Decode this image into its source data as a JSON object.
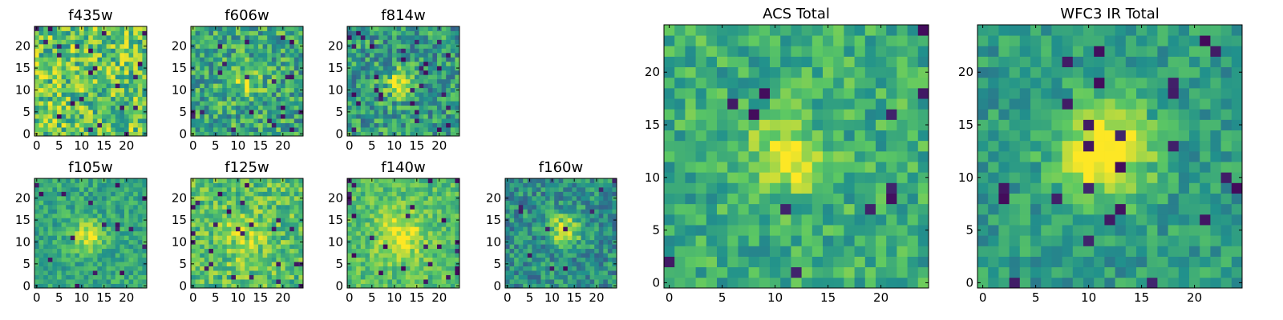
{
  "colormap": "viridis",
  "colors": {
    "viridis_stops": [
      "#440154",
      "#3b528b",
      "#21918c",
      "#5ec962",
      "#fde725"
    ],
    "frame": "#000000",
    "background": "#ffffff"
  },
  "chart_data": [
    {
      "type": "heatmap",
      "title": "f435w",
      "grid_size": 25,
      "xlim": [
        0,
        25
      ],
      "ylim": [
        0,
        25
      ],
      "xticks": [
        0,
        5,
        10,
        15,
        20
      ],
      "yticks": [
        0,
        5,
        10,
        15,
        20
      ],
      "grid": false,
      "colormap": "viridis",
      "pattern": "noise_uniform"
    },
    {
      "type": "heatmap",
      "title": "f606w",
      "grid_size": 25,
      "xlim": [
        0,
        25
      ],
      "ylim": [
        0,
        25
      ],
      "xticks": [
        0,
        5,
        10,
        15,
        20
      ],
      "yticks": [
        0,
        5,
        10,
        15,
        20
      ],
      "grid": false,
      "colormap": "viridis",
      "pattern": "noise_with_faint_center"
    },
    {
      "type": "heatmap",
      "title": "f814w",
      "grid_size": 25,
      "xlim": [
        0,
        25
      ],
      "ylim": [
        0,
        25
      ],
      "xticks": [
        0,
        5,
        10,
        15,
        20
      ],
      "yticks": [
        0,
        5,
        10,
        15,
        20
      ],
      "grid": false,
      "colormap": "viridis",
      "pattern": "noise_with_center_blob"
    },
    {
      "type": "heatmap",
      "title": "f105w",
      "grid_size": 25,
      "xlim": [
        0,
        25
      ],
      "ylim": [
        0,
        25
      ],
      "xticks": [
        0,
        5,
        10,
        15,
        20
      ],
      "yticks": [
        0,
        5,
        10,
        15,
        20
      ],
      "grid": false,
      "colormap": "viridis",
      "pattern": "smooth_with_center_blob"
    },
    {
      "type": "heatmap",
      "title": "f125w",
      "grid_size": 25,
      "xlim": [
        0,
        25
      ],
      "ylim": [
        0,
        25
      ],
      "xticks": [
        0,
        5,
        10,
        15,
        20
      ],
      "yticks": [
        0,
        5,
        10,
        15,
        20
      ],
      "grid": false,
      "colormap": "viridis",
      "pattern": "smooth_bright"
    },
    {
      "type": "heatmap",
      "title": "f140w",
      "grid_size": 25,
      "xlim": [
        0,
        25
      ],
      "ylim": [
        0,
        25
      ],
      "xticks": [
        0,
        5,
        10,
        15,
        20
      ],
      "yticks": [
        0,
        5,
        10,
        15,
        20
      ],
      "grid": false,
      "colormap": "viridis",
      "pattern": "smooth_bright_center"
    },
    {
      "type": "heatmap",
      "title": "f160w",
      "grid_size": 25,
      "xlim": [
        0,
        25
      ],
      "ylim": [
        0,
        25
      ],
      "xticks": [
        0,
        5,
        10,
        15,
        20
      ],
      "yticks": [
        0,
        5,
        10,
        15,
        20
      ],
      "grid": false,
      "colormap": "viridis",
      "pattern": "smooth_dim_center"
    },
    {
      "type": "heatmap",
      "title": "ACS Total",
      "grid_size": 25,
      "xlim": [
        0,
        25
      ],
      "ylim": [
        0,
        25
      ],
      "xticks": [
        0,
        5,
        10,
        15,
        20
      ],
      "yticks": [
        0,
        5,
        10,
        15,
        20
      ],
      "grid": false,
      "colormap": "viridis",
      "pattern": "stack_center_blob"
    },
    {
      "type": "heatmap",
      "title": "WFC3 IR Total",
      "grid_size": 25,
      "xlim": [
        0,
        25
      ],
      "ylim": [
        0,
        25
      ],
      "xticks": [
        0,
        5,
        10,
        15,
        20
      ],
      "yticks": [
        0,
        5,
        10,
        15,
        20
      ],
      "grid": false,
      "colormap": "viridis",
      "pattern": "stack_smooth_center_blob"
    }
  ]
}
